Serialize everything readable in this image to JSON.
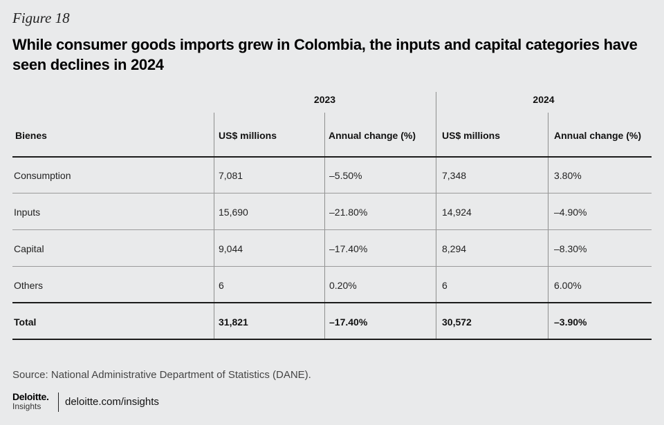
{
  "figure_label": "Figure 18",
  "title": "While consumer goods imports grew in Colombia, the inputs and capital categories have seen declines in 2024",
  "chart_data": {
    "type": "table",
    "year_groups": [
      "2023",
      "2024"
    ],
    "columns": [
      "Bienes",
      "US$ millions",
      "Annual change (%)",
      "US$ millions",
      "Annual change (%)"
    ],
    "rows": [
      {
        "label": "Consumption",
        "cells": [
          "7,081",
          "–5.50%",
          "7,348",
          "3.80%"
        ]
      },
      {
        "label": "Inputs",
        "cells": [
          "15,690",
          "–21.80%",
          "14,924",
          "–4.90%"
        ]
      },
      {
        "label": "Capital",
        "cells": [
          "9,044",
          "–17.40%",
          "8,294",
          "–8.30%"
        ]
      },
      {
        "label": "Others",
        "cells": [
          "6",
          "0.20%",
          "6",
          "6.00%"
        ]
      }
    ],
    "total": {
      "label": "Total",
      "cells": [
        "31,821",
        "–17.40%",
        "30,572",
        "–3.90%"
      ]
    }
  },
  "source": "Source: National Administrative Department of Statistics (DANE).",
  "footer": {
    "brand": "Deloitte.",
    "brand_sub": "Insights",
    "site": "deloitte.com/insights"
  },
  "colors": {
    "background": "#e9eaeb",
    "brand_accent": "#86bc25"
  }
}
